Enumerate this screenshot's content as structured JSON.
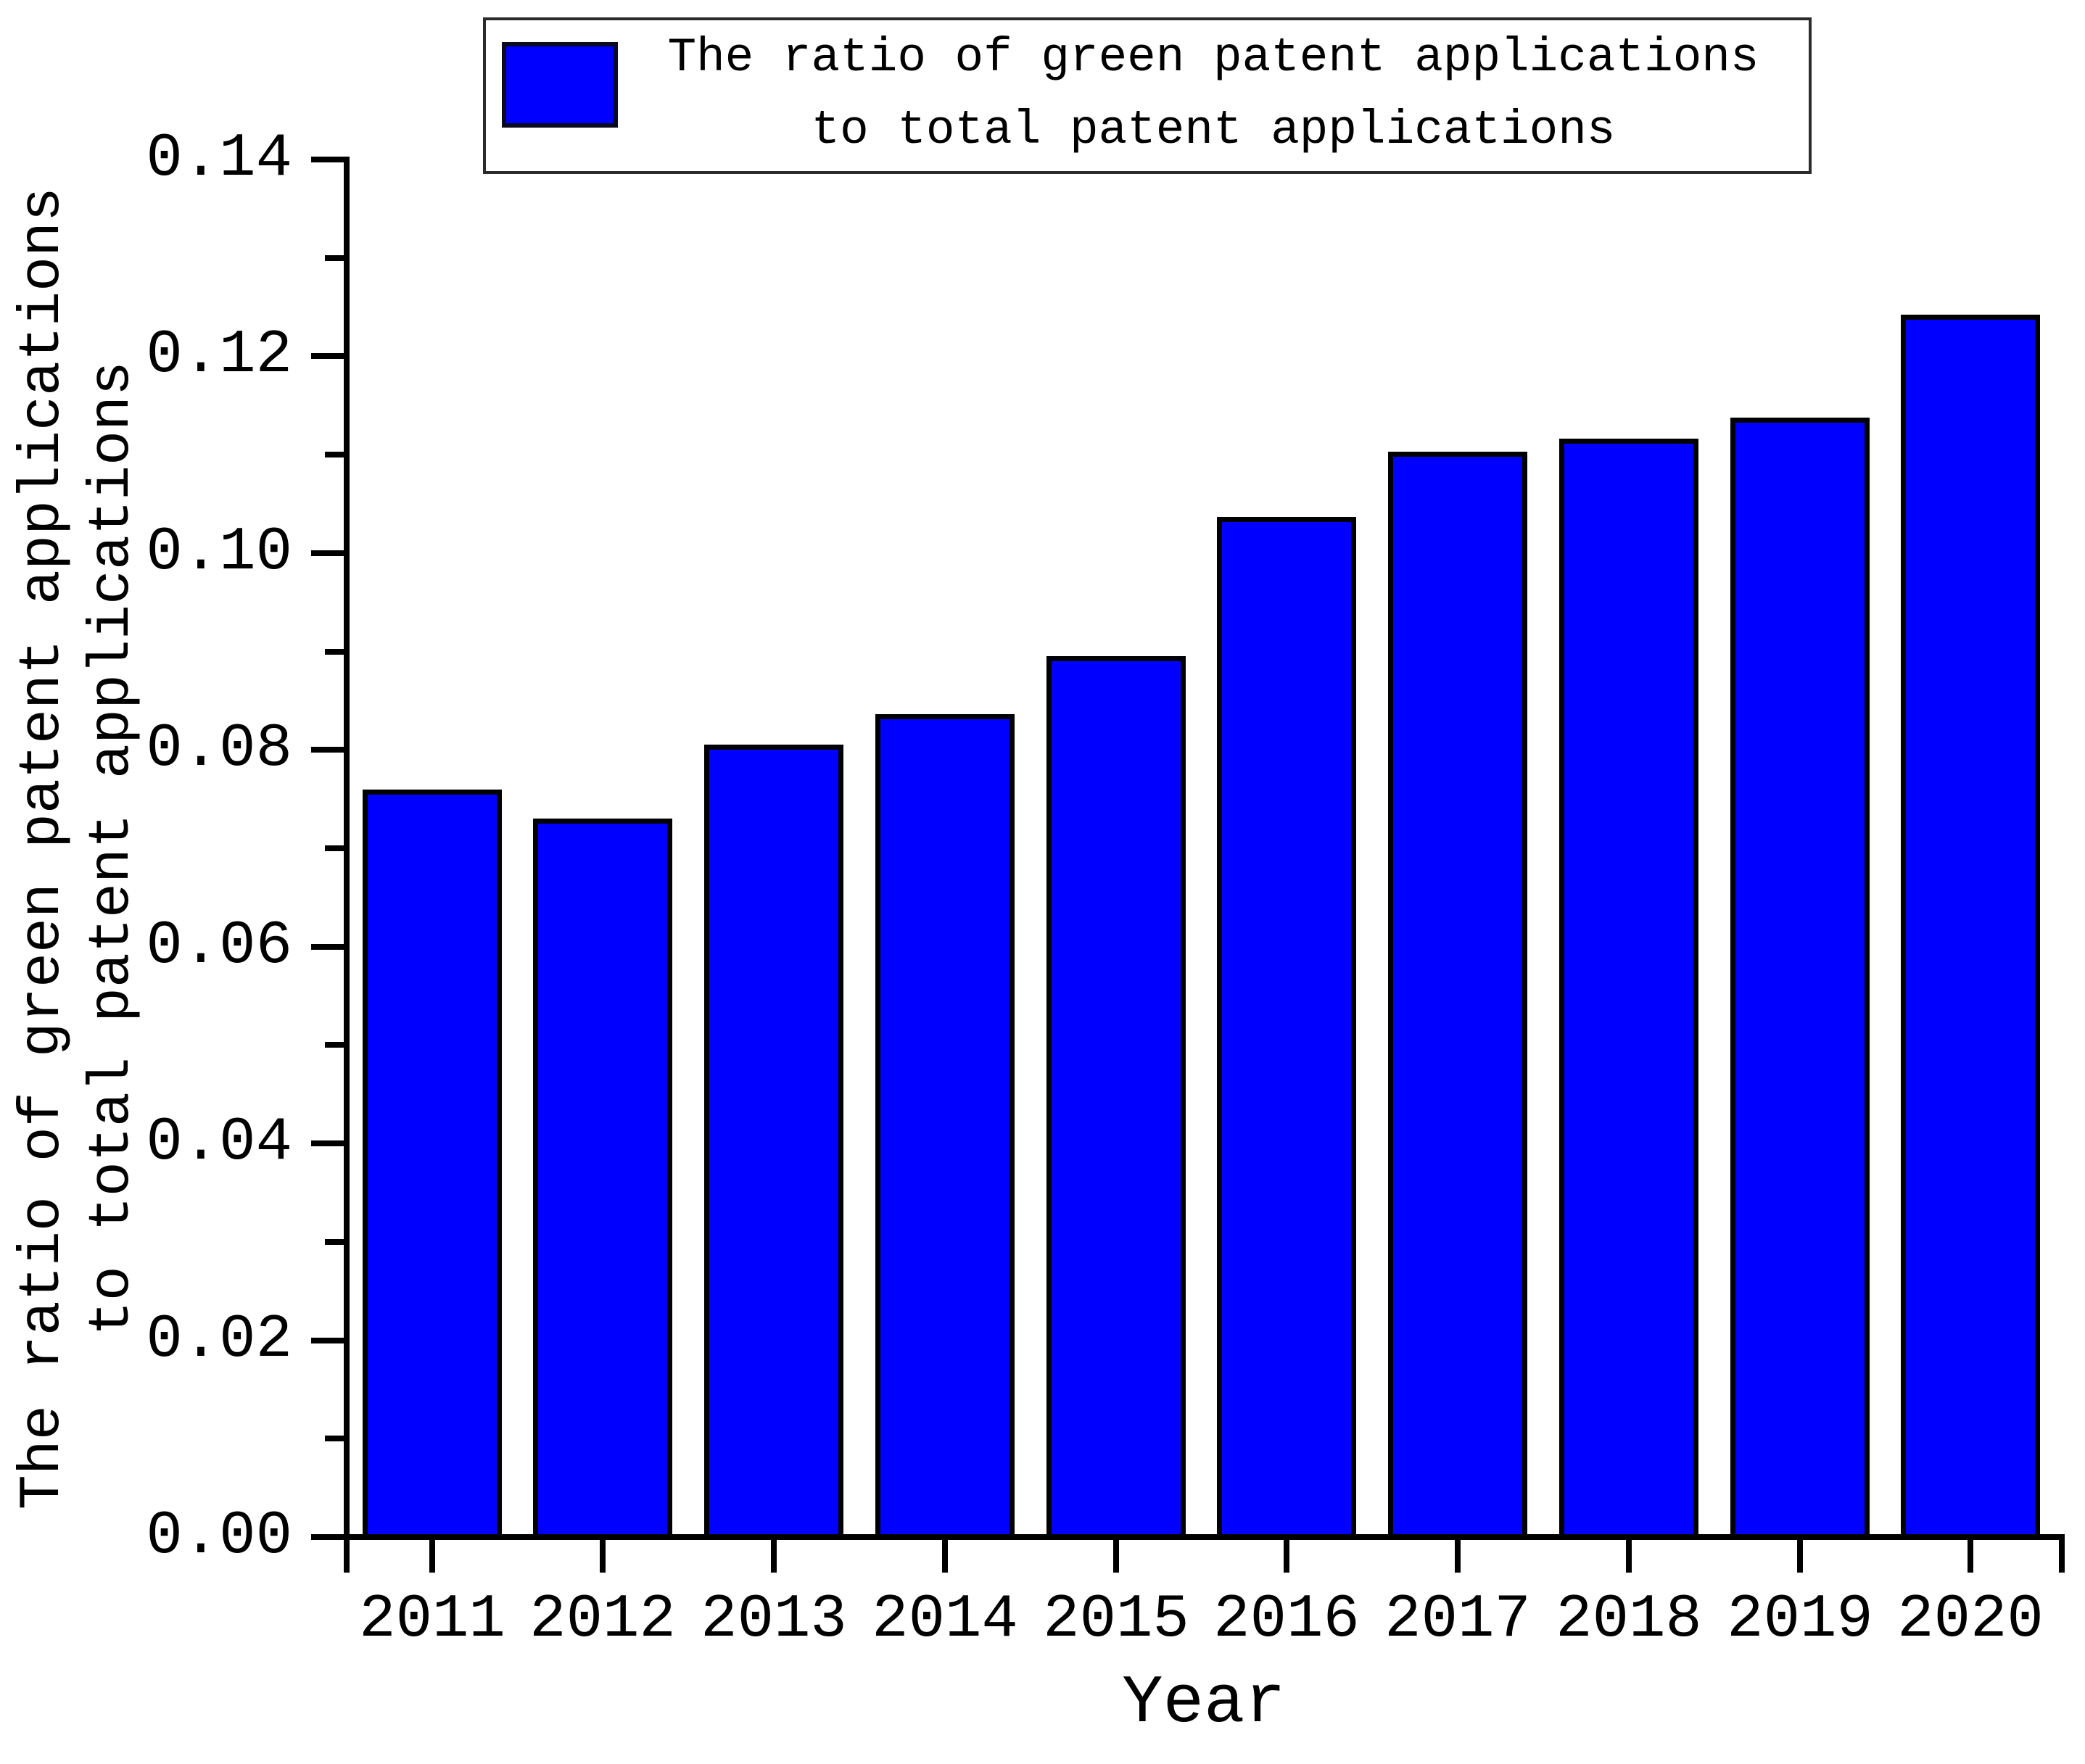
{
  "figure": {
    "background": "#ffffff",
    "text_color": "#000000"
  },
  "legend": {
    "lines": [
      "The ratio of green patent applications",
      "to total patent applications"
    ],
    "swatch_color": "#0000fe"
  },
  "axes": {
    "x_title": "Year",
    "y_title_lines": [
      "The ratio of green patent applications",
      "to total patent applications"
    ]
  },
  "chart_data": {
    "type": "bar",
    "title": "",
    "categories": [
      "2011",
      "2012",
      "2013",
      "2014",
      "2015",
      "2016",
      "2017",
      "2018",
      "2019",
      "2020"
    ],
    "values": [
      0.076,
      0.073,
      0.0805,
      0.0836,
      0.0895,
      0.1037,
      0.1103,
      0.1116,
      0.1138,
      0.1242
    ],
    "xlabel": "Year",
    "ylabel": "The ratio of green patent applications to total patent applications",
    "legend": [
      "The ratio of green patent applications to total patent applications"
    ],
    "ylim": [
      0,
      0.14
    ],
    "ytick_step": 0.02,
    "ytick_labels": [
      "0.00",
      "0.02",
      "0.04",
      "0.06",
      "0.08",
      "0.10",
      "0.12",
      "0.14"
    ],
    "minor_tick_step": 0.01,
    "bar_color": "#0000fe",
    "bar_edge_color": "#000000",
    "grid": false,
    "legend_position": "top-center",
    "tick_direction": "out"
  }
}
